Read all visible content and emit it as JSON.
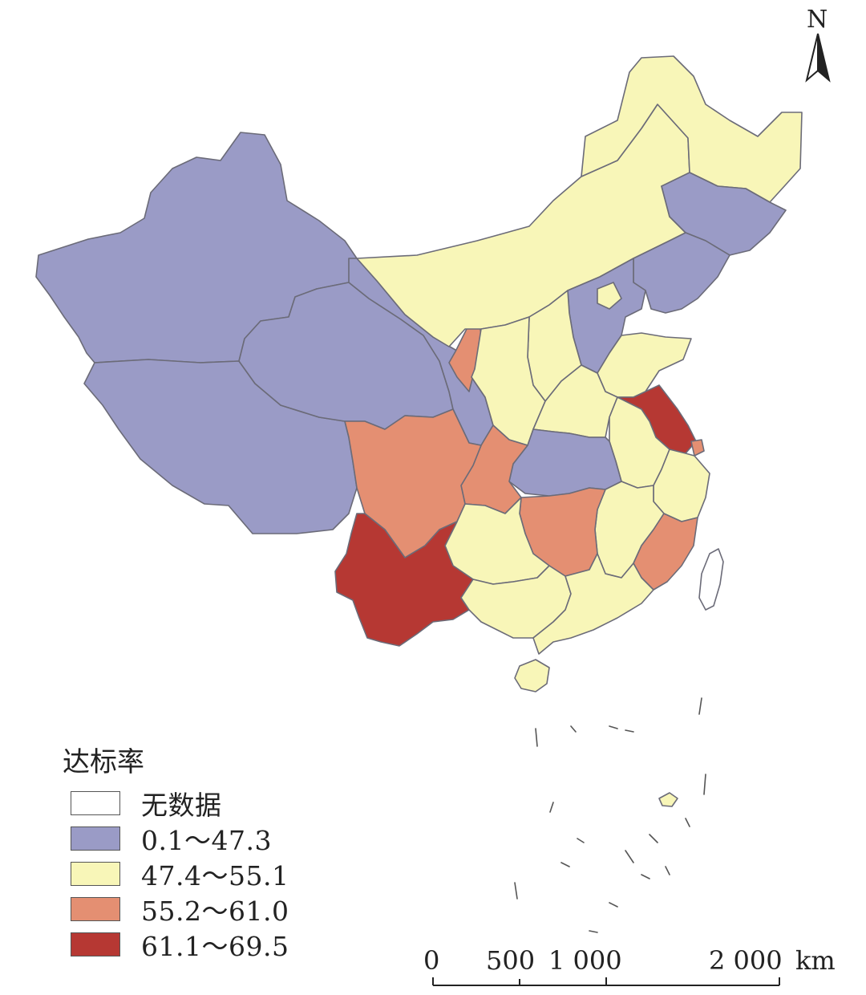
{
  "legend": {
    "title": "达标率",
    "items": [
      {
        "label": "无数据",
        "color": "#ffffff"
      },
      {
        "label": "0.1～47.3",
        "color": "#9a9bc6"
      },
      {
        "label": "47.4～55.1",
        "color": "#f8f6b8"
      },
      {
        "label": "55.2～61.0",
        "color": "#e48f72"
      },
      {
        "label": "61.1～69.5",
        "color": "#b63833"
      }
    ]
  },
  "scale_bar": {
    "ticks": [
      "0",
      "500",
      "1 000",
      "2 000"
    ],
    "unit": "km"
  },
  "north_arrow": {
    "label": "N"
  }
}
